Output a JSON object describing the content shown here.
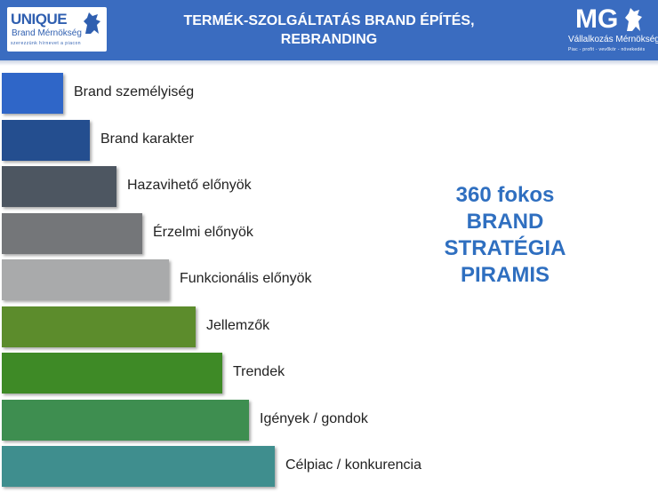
{
  "header": {
    "title_line1": "TERMÉK-SZOLGÁLTATÁS BRAND ÉPÍTÉS,",
    "title_line2": "REBRANDING",
    "logo_left": {
      "word": "UNIQUE",
      "subtitle": "Brand Mérnökség",
      "tagline": "szerezzünk hírnevet a piacon"
    },
    "logo_right": {
      "word": "MG",
      "subtitle": "Vállalkozás Mérnökség",
      "tagline": "Piac - profit - vevőkör - növekedés"
    },
    "color": "#3a6cc0"
  },
  "pyramid": {
    "steps": [
      {
        "label": "Brand személyiség",
        "color": "#2f66c8"
      },
      {
        "label": "Brand karakter",
        "color": "#244e8f"
      },
      {
        "label": "Hazavihető előnyök",
        "color": "#4d5661"
      },
      {
        "label": "Érzelmi előnyök",
        "color": "#747679"
      },
      {
        "label": "Funkcionális előnyök",
        "color": "#a9aaab"
      },
      {
        "label": "Jellemzők",
        "color": "#5c8c2c"
      },
      {
        "label": "Trendek",
        "color": "#3e8a26"
      },
      {
        "label": "Igények / gondok",
        "color": "#3e8e50"
      },
      {
        "label": "Célpiac / konkurencia",
        "color": "#3f8e8e"
      }
    ]
  },
  "side_text": {
    "line1": "360 fokos",
    "line2": "BRAND",
    "line3": "STRATÉGIA",
    "line4": "PIRAMIS",
    "color": "#2f6fc0"
  }
}
